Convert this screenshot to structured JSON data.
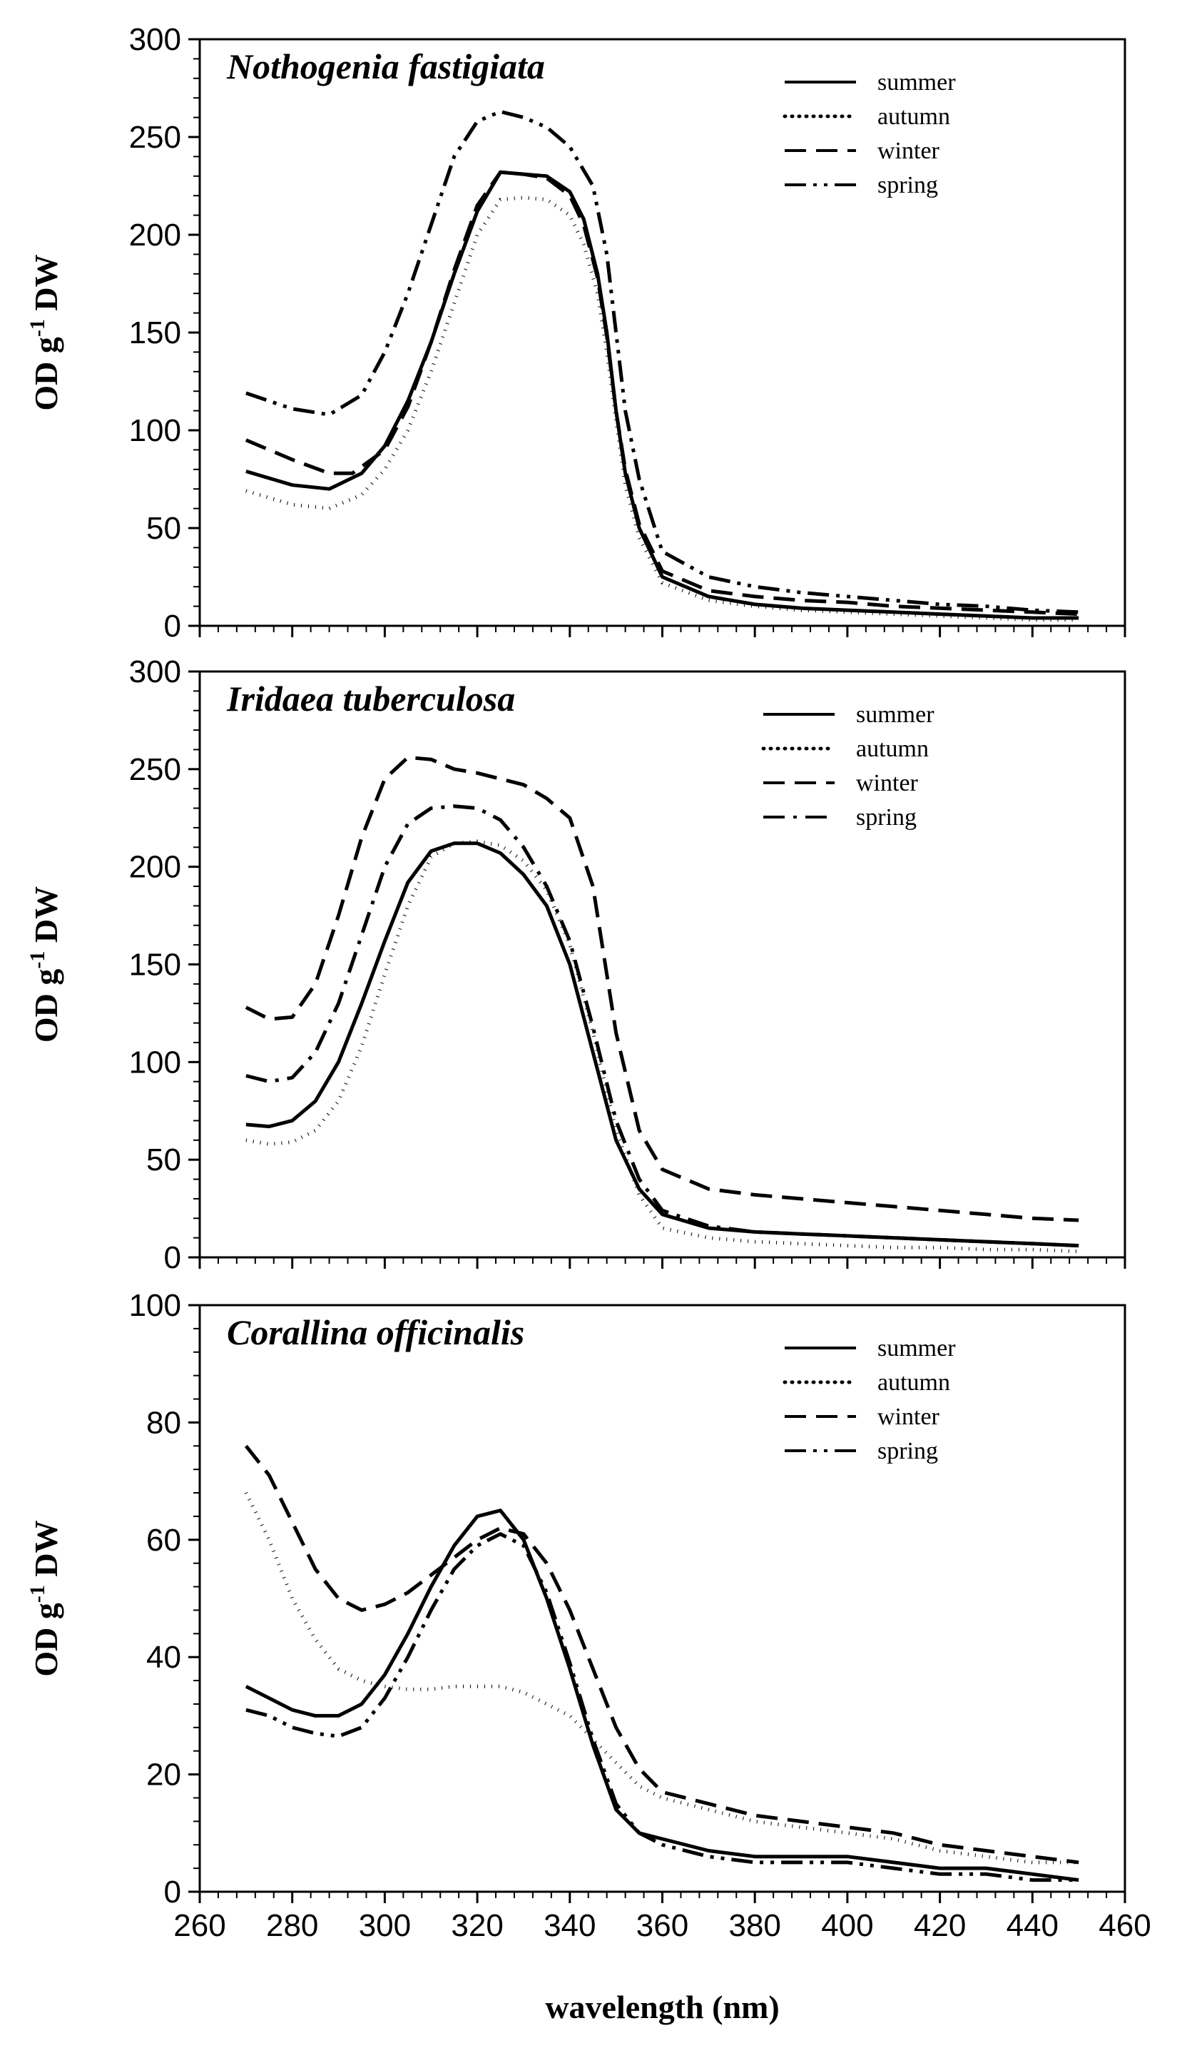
{
  "figure": {
    "xlabel": "wavelength (nm)",
    "legend_labels": [
      "summer",
      "autumn",
      "winter",
      "spring"
    ]
  },
  "chart_data": [
    {
      "type": "line",
      "title": "Nothogenia fastigiata",
      "ylabel_main": "OD g",
      "ylabel_sup": "-1",
      "ylabel_tail": " DW",
      "xlim": [
        260,
        460
      ],
      "ylim": [
        0,
        300
      ],
      "yticks": [
        0,
        50,
        100,
        150,
        200,
        250,
        300
      ],
      "xticks": [
        260,
        280,
        300,
        320,
        340,
        360,
        380,
        400,
        420,
        440,
        460
      ],
      "show_x_tick_labels": false,
      "legend_position": "top-right",
      "series": [
        {
          "name": "summer",
          "style": "solid",
          "x": [
            270,
            280,
            288,
            295,
            300,
            305,
            310,
            315,
            320,
            325,
            330,
            335,
            340,
            343,
            346,
            348,
            350,
            352,
            355,
            360,
            370,
            380,
            390,
            400,
            410,
            420,
            430,
            440,
            450
          ],
          "y": [
            79,
            72,
            70,
            78,
            92,
            115,
            145,
            180,
            212,
            232,
            231,
            230,
            222,
            208,
            180,
            150,
            110,
            78,
            50,
            25,
            15,
            11,
            9,
            8,
            7,
            6,
            5,
            4,
            4
          ]
        },
        {
          "name": "autumn",
          "style": "dotted",
          "x": [
            270,
            280,
            288,
            295,
            300,
            305,
            310,
            315,
            320,
            325,
            330,
            335,
            340,
            343,
            346,
            348,
            350,
            352,
            355,
            360,
            370,
            380,
            390,
            400,
            410,
            420,
            430,
            440,
            450
          ],
          "y": [
            69,
            62,
            60,
            67,
            80,
            100,
            130,
            165,
            200,
            218,
            219,
            218,
            210,
            195,
            170,
            140,
            105,
            72,
            45,
            22,
            13,
            10,
            8,
            7,
            6,
            5,
            4,
            3,
            3
          ]
        },
        {
          "name": "winter",
          "style": "dashed",
          "x": [
            270,
            280,
            288,
            293,
            300,
            305,
            310,
            315,
            320,
            325,
            330,
            335,
            340,
            343,
            346,
            348,
            350,
            352,
            355,
            360,
            370,
            380,
            390,
            400,
            410,
            420,
            430,
            440,
            450
          ],
          "y": [
            95,
            85,
            78,
            78,
            90,
            112,
            145,
            182,
            215,
            232,
            231,
            229,
            220,
            205,
            178,
            148,
            110,
            80,
            52,
            28,
            18,
            15,
            13,
            12,
            10,
            9,
            8,
            7,
            6
          ]
        },
        {
          "name": "spring",
          "style": "dashdotdot",
          "x": [
            270,
            280,
            288,
            295,
            300,
            305,
            310,
            315,
            320,
            325,
            330,
            335,
            340,
            345,
            348,
            350,
            352,
            355,
            360,
            370,
            380,
            390,
            400,
            410,
            420,
            430,
            440,
            450
          ],
          "y": [
            119,
            111,
            108,
            118,
            140,
            170,
            205,
            240,
            258,
            263,
            260,
            255,
            245,
            225,
            190,
            150,
            110,
            75,
            38,
            25,
            20,
            17,
            15,
            13,
            11,
            10,
            8,
            7
          ]
        }
      ]
    },
    {
      "type": "line",
      "title": "Iridaea tuberculosa",
      "ylabel_main": "OD g",
      "ylabel_sup": "-1",
      "ylabel_tail": " DW",
      "xlim": [
        260,
        460
      ],
      "ylim": [
        0,
        300
      ],
      "yticks": [
        0,
        50,
        100,
        150,
        200,
        250,
        300
      ],
      "xticks": [
        260,
        280,
        300,
        320,
        340,
        360,
        380,
        400,
        420,
        440,
        460
      ],
      "show_x_tick_labels": false,
      "legend_position": "top-right",
      "series": [
        {
          "name": "summer",
          "style": "solid",
          "x": [
            270,
            275,
            280,
            285,
            290,
            295,
            300,
            305,
            310,
            315,
            320,
            325,
            330,
            335,
            340,
            345,
            350,
            355,
            360,
            370,
            380,
            390,
            400,
            410,
            420,
            430,
            440,
            450
          ],
          "y": [
            68,
            67,
            70,
            80,
            100,
            130,
            162,
            192,
            208,
            212,
            212,
            207,
            196,
            180,
            150,
            105,
            60,
            35,
            22,
            15,
            13,
            12,
            11,
            10,
            9,
            8,
            7,
            6
          ]
        },
        {
          "name": "autumn",
          "style": "dotted",
          "x": [
            270,
            275,
            280,
            285,
            290,
            295,
            300,
            305,
            310,
            315,
            320,
            325,
            330,
            335,
            340,
            345,
            350,
            355,
            360,
            370,
            380,
            390,
            400,
            410,
            420,
            430,
            440,
            450
          ],
          "y": [
            60,
            58,
            59,
            65,
            80,
            108,
            145,
            180,
            205,
            212,
            213,
            211,
            203,
            188,
            160,
            115,
            65,
            32,
            15,
            10,
            8,
            7,
            6,
            5,
            5,
            4,
            4,
            3
          ]
        },
        {
          "name": "winter",
          "style": "dashed",
          "x": [
            270,
            275,
            280,
            285,
            290,
            295,
            300,
            305,
            310,
            315,
            320,
            325,
            330,
            335,
            340,
            345,
            350,
            355,
            360,
            370,
            380,
            390,
            400,
            410,
            420,
            430,
            440,
            450
          ],
          "y": [
            128,
            122,
            123,
            140,
            175,
            215,
            245,
            256,
            255,
            250,
            248,
            245,
            242,
            235,
            225,
            190,
            115,
            65,
            45,
            35,
            32,
            30,
            28,
            26,
            24,
            22,
            20,
            19
          ]
        },
        {
          "name": "spring",
          "style": "dashdot",
          "x": [
            270,
            275,
            280,
            285,
            290,
            295,
            300,
            305,
            310,
            315,
            320,
            325,
            330,
            335,
            340,
            345,
            350,
            355,
            360,
            370,
            380,
            390,
            400,
            410,
            420,
            430,
            440,
            450
          ],
          "y": [
            93,
            90,
            92,
            105,
            130,
            165,
            200,
            222,
            230,
            231,
            230,
            224,
            210,
            190,
            162,
            118,
            70,
            40,
            24,
            16,
            13,
            12,
            11,
            10,
            9,
            8,
            7,
            6
          ]
        }
      ]
    },
    {
      "type": "line",
      "title": "Corallina officinalis",
      "ylabel_main": "OD g",
      "ylabel_sup": "-1",
      "ylabel_tail": " DW",
      "xlim": [
        260,
        460
      ],
      "ylim": [
        0,
        100
      ],
      "yticks": [
        0,
        20,
        40,
        60,
        80,
        100
      ],
      "xticks": [
        260,
        280,
        300,
        320,
        340,
        360,
        380,
        400,
        420,
        440,
        460
      ],
      "show_x_tick_labels": true,
      "legend_position": "top-right",
      "series": [
        {
          "name": "summer",
          "style": "solid",
          "x": [
            270,
            275,
            280,
            285,
            290,
            295,
            300,
            305,
            310,
            315,
            320,
            325,
            330,
            335,
            340,
            345,
            350,
            355,
            360,
            370,
            380,
            390,
            400,
            410,
            420,
            430,
            440,
            450
          ],
          "y": [
            35,
            33,
            31,
            30,
            30,
            32,
            37,
            44,
            52,
            59,
            64,
            65,
            60,
            50,
            38,
            25,
            14,
            10,
            9,
            7,
            6,
            6,
            6,
            5,
            4,
            4,
            3,
            2
          ]
        },
        {
          "name": "autumn",
          "style": "dotted",
          "x": [
            270,
            275,
            280,
            285,
            290,
            295,
            300,
            305,
            310,
            315,
            320,
            325,
            330,
            335,
            340,
            345,
            350,
            355,
            360,
            370,
            380,
            390,
            400,
            410,
            420,
            430,
            440,
            450
          ],
          "y": [
            68,
            60,
            50,
            43,
            38,
            36,
            35,
            34.5,
            34.5,
            35,
            35,
            35,
            34,
            32,
            30,
            26,
            22,
            18,
            16,
            14,
            12,
            11,
            10,
            9,
            7,
            6,
            5,
            5
          ]
        },
        {
          "name": "winter",
          "style": "dashed",
          "x": [
            270,
            275,
            280,
            285,
            290,
            295,
            300,
            305,
            310,
            315,
            320,
            325,
            330,
            335,
            340,
            345,
            350,
            355,
            360,
            370,
            380,
            390,
            400,
            410,
            420,
            430,
            440,
            450
          ],
          "y": [
            76,
            71,
            63,
            55,
            50,
            48,
            49,
            51,
            54,
            57,
            60,
            62,
            61,
            56,
            48,
            38,
            28,
            21,
            17,
            15,
            13,
            12,
            11,
            10,
            8,
            7,
            6,
            5
          ]
        },
        {
          "name": "spring",
          "style": "dashdotdot",
          "x": [
            270,
            275,
            280,
            285,
            290,
            295,
            300,
            305,
            310,
            315,
            320,
            325,
            330,
            335,
            340,
            345,
            350,
            355,
            360,
            370,
            380,
            390,
            400,
            410,
            420,
            430,
            440,
            450
          ],
          "y": [
            31,
            30,
            28,
            27,
            26.5,
            28,
            33,
            40,
            48,
            55,
            59,
            61,
            59,
            51,
            39,
            26,
            15,
            10,
            8,
            6,
            5,
            5,
            5,
            4,
            3,
            3,
            2,
            2
          ]
        }
      ]
    }
  ]
}
